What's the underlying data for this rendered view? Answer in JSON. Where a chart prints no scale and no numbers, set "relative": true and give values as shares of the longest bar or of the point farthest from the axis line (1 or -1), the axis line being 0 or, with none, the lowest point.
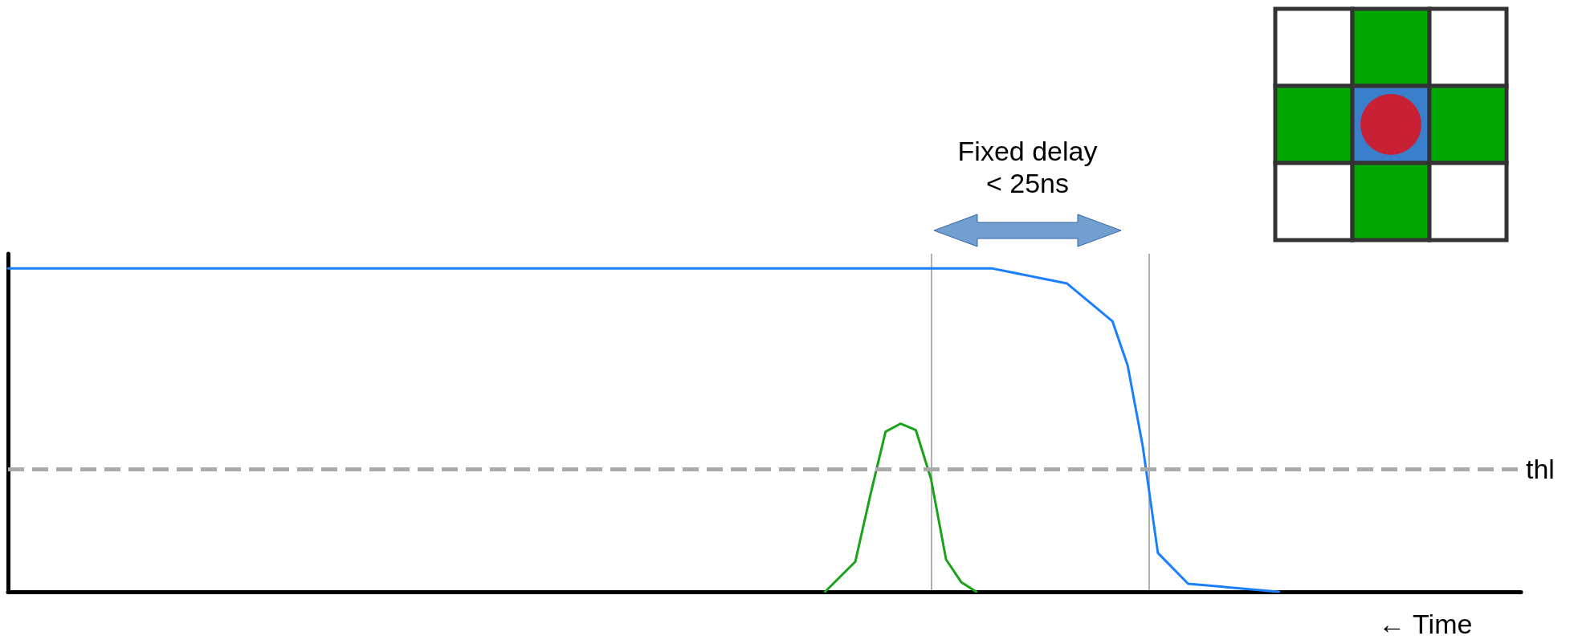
{
  "chart_data": {
    "type": "line",
    "relative": true,
    "xlabel": "← Time",
    "grid": false,
    "marker": "none",
    "line_style": "solid",
    "categories": [
      null,
      null,
      null,
      null,
      null,
      null,
      null,
      null,
      null,
      null,
      null,
      null,
      null,
      null,
      null,
      null,
      null,
      null,
      null,
      null,
      null,
      null,
      null,
      null,
      null,
      null,
      null,
      null,
      null,
      null,
      null,
      null,
      null,
      null,
      null,
      null,
      null,
      null,
      null,
      null,
      null,
      null,
      null,
      null,
      null,
      null,
      null,
      null,
      null,
      null,
      null,
      null,
      null,
      null,
      null,
      null,
      null,
      null,
      null,
      null,
      null,
      null,
      null,
      null,
      null,
      null,
      null,
      null,
      null,
      null,
      null,
      null,
      null,
      null,
      null,
      null,
      null,
      null,
      null,
      null,
      null,
      null,
      null,
      null,
      null,
      null,
      null,
      null,
      null,
      null,
      null,
      null,
      null,
      null,
      null,
      null,
      null,
      null,
      null,
      null,
      null
    ],
    "series": [
      {
        "color": "#1a7fff",
        "values": [
          1,
          null,
          null,
          null,
          null,
          null,
          null,
          null,
          null,
          null,
          null,
          null,
          null,
          null,
          null,
          null,
          null,
          null,
          null,
          null,
          null,
          null,
          null,
          null,
          null,
          null,
          null,
          null,
          null,
          null,
          null,
          null,
          null,
          null,
          null,
          null,
          null,
          null,
          null,
          null,
          null,
          null,
          null,
          null,
          null,
          null,
          null,
          null,
          null,
          null,
          null,
          null,
          null,
          null,
          null,
          null,
          null,
          null,
          null,
          null,
          null,
          null,
          null,
          null,
          null,
          1,
          null,
          null,
          null,
          null,
          0.953,
          null,
          null,
          0.836,
          0.7,
          0.45,
          0.12,
          null,
          0.025,
          null,
          null,
          null,
          null,
          null,
          0,
          null,
          null,
          null,
          null,
          null,
          null,
          null,
          null,
          null,
          null,
          null,
          null,
          null,
          null,
          null,
          null
        ]
      },
      {
        "color": "#1aa31a",
        "values": [
          null,
          null,
          null,
          null,
          null,
          null,
          null,
          null,
          null,
          null,
          null,
          null,
          null,
          null,
          null,
          null,
          null,
          null,
          null,
          null,
          null,
          null,
          null,
          null,
          null,
          null,
          null,
          null,
          null,
          null,
          null,
          null,
          null,
          null,
          null,
          null,
          null,
          null,
          null,
          null,
          null,
          null,
          null,
          null,
          null,
          null,
          null,
          null,
          null,
          null,
          null,
          null,
          null,
          null,
          0,
          null,
          0.093,
          0.3,
          0.495,
          0.52,
          0.5,
          0.35,
          0.1,
          0.03,
          0,
          null,
          null,
          null,
          null,
          null,
          null,
          null,
          null,
          null,
          null,
          null,
          null,
          null,
          null,
          null,
          null,
          null,
          null,
          null,
          null,
          null,
          null,
          null,
          null,
          null,
          null,
          null,
          null,
          null,
          null,
          null,
          null,
          null,
          null,
          null,
          null
        ]
      }
    ],
    "ref_lines": [
      {
        "axis": "y",
        "value": 0.375,
        "label": "thl",
        "color": "#aaaaaa",
        "line_style": "dashed"
      }
    ],
    "annotations": [
      "Fixed delay\n< 25ns"
    ]
  }
}
